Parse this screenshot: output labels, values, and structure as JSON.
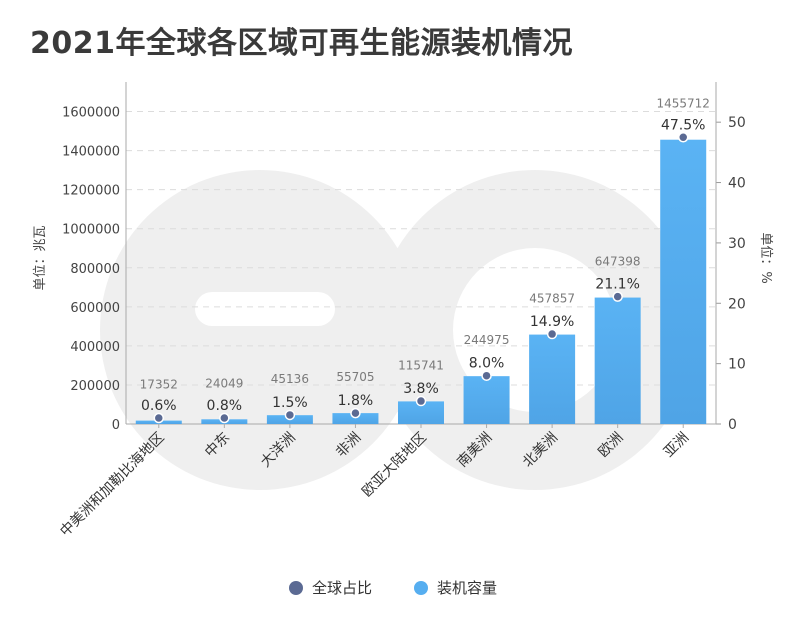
{
  "title": "2021年全球各区域可再生能源装机情况",
  "chart_data": {
    "type": "bar",
    "title": "2021年全球各区域可再生能源装机情况",
    "categories": [
      "中美洲和加勒比海地区",
      "中东",
      "大洋洲",
      "非洲",
      "欧亚大陆地区",
      "南美洲",
      "北美洲",
      "欧洲",
      "亚洲"
    ],
    "series": [
      {
        "name": "装机容量",
        "kind": "bar",
        "axis": "left",
        "color": "#56aef0",
        "values": [
          17352,
          24049,
          45136,
          55705,
          115741,
          244975,
          457857,
          647398,
          1455712
        ]
      },
      {
        "name": "全球占比",
        "kind": "point",
        "axis": "right",
        "color": "#5b6a93",
        "values": [
          0.6,
          0.8,
          1.5,
          1.8,
          3.8,
          8.0,
          14.9,
          21.1,
          47.5
        ],
        "labels": [
          "0.6%",
          "0.8%",
          "1.5%",
          "1.8%",
          "3.8%",
          "8.0%",
          "14.9%",
          "21.1%",
          "47.5%"
        ]
      }
    ],
    "ylabel": "单位：兆瓦",
    "y2label": "单位：%",
    "ylim": [
      0,
      1700000
    ],
    "yticks": [
      0,
      200000,
      400000,
      600000,
      800000,
      1000000,
      1200000,
      1400000,
      1600000
    ],
    "y2lim": [
      0,
      55
    ],
    "y2ticks": [
      0,
      10,
      20,
      30,
      40,
      50
    ],
    "grid": true,
    "legend_position": "bottom"
  }
}
